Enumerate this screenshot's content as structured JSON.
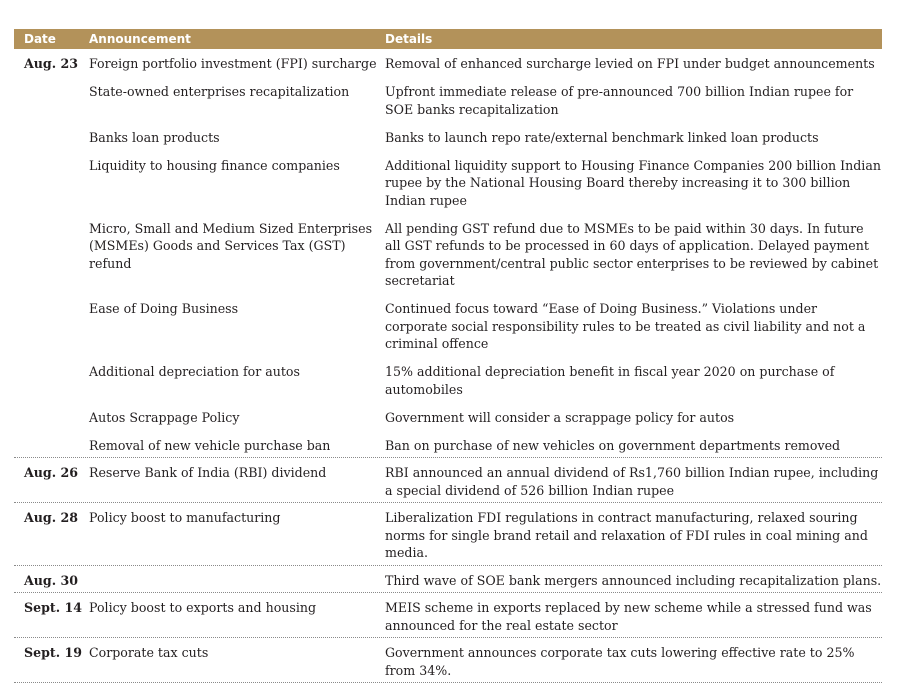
{
  "header": {
    "date": "Date",
    "announcement": "Announcement",
    "details": "Details"
  },
  "groups": [
    {
      "date": "Aug. 23",
      "rows": [
        {
          "announcement": "Foreign portfolio investment (FPI) surcharge",
          "details": "Removal of enhanced surcharge levied on FPI under budget announcements"
        },
        {
          "announcement": "State-owned enterprises recapitalization",
          "details": "Upfront immediate release of pre-announced 700 billion Indian rupee for SOE banks recapitalization"
        },
        {
          "announcement": "Banks loan products",
          "details": "Banks to launch repo rate/external benchmark linked loan products"
        },
        {
          "announcement": "Liquidity to housing finance companies",
          "details": "Additional liquidity support to Housing Finance Companies 200 billion Indian rupee by the National Housing Board thereby increasing it to 300 billion Indian rupee"
        },
        {
          "announcement": "Micro, Small and Medium Sized Enterprises (MSMEs) Goods and Services Tax (GST) refund",
          "details": "All pending GST refund due to MSMEs to be paid within 30 days. In future all GST refunds to be processed in 60 days of application. Delayed payment from government/central public sector enterprises to be reviewed by cabinet secretariat"
        },
        {
          "announcement": "Ease of Doing Business",
          "details": "Continued focus toward “Ease of Doing Business.” Violations under corporate social responsibility rules to be treated as civil liability and not a criminal offence"
        },
        {
          "announcement": "Additional depreciation for autos",
          "details": "15% additional depreciation benefit in fiscal year 2020 on purchase of automobiles"
        },
        {
          "announcement": "Autos Scrappage Policy",
          "details": "Government will consider a scrappage policy for autos"
        },
        {
          "announcement": "Removal of new vehicle purchase ban",
          "details": "Ban on purchase of new vehicles on government departments removed"
        }
      ]
    },
    {
      "date": "Aug. 26",
      "rows": [
        {
          "announcement": "Reserve Bank of India (RBI) dividend",
          "details": "RBI announced an annual dividend of Rs1,760 billion Indian rupee, including a special dividend of 526 billion Indian rupee"
        }
      ]
    },
    {
      "date": "Aug. 28",
      "rows": [
        {
          "announcement": "Policy boost to manufacturing",
          "details": "Liberalization FDI regulations in contract manufacturing, relaxed souring norms for single brand retail and relaxation of FDI rules in coal mining and media."
        }
      ]
    },
    {
      "date": "Aug. 30",
      "rows": [
        {
          "announcement": "",
          "details": "Third wave of SOE bank mergers announced including recapitalization plans."
        }
      ]
    },
    {
      "date": "Sept. 14",
      "rows": [
        {
          "announcement": "Policy boost to exports and housing",
          "details": "MEIS scheme in exports replaced by new scheme while a stressed fund was announced for the real estate sector"
        }
      ]
    },
    {
      "date": "Sept. 19",
      "rows": [
        {
          "announcement": "Corporate tax cuts",
          "details": "Government announces corporate tax cuts lowering effective rate to 25% from 34%."
        }
      ]
    }
  ]
}
